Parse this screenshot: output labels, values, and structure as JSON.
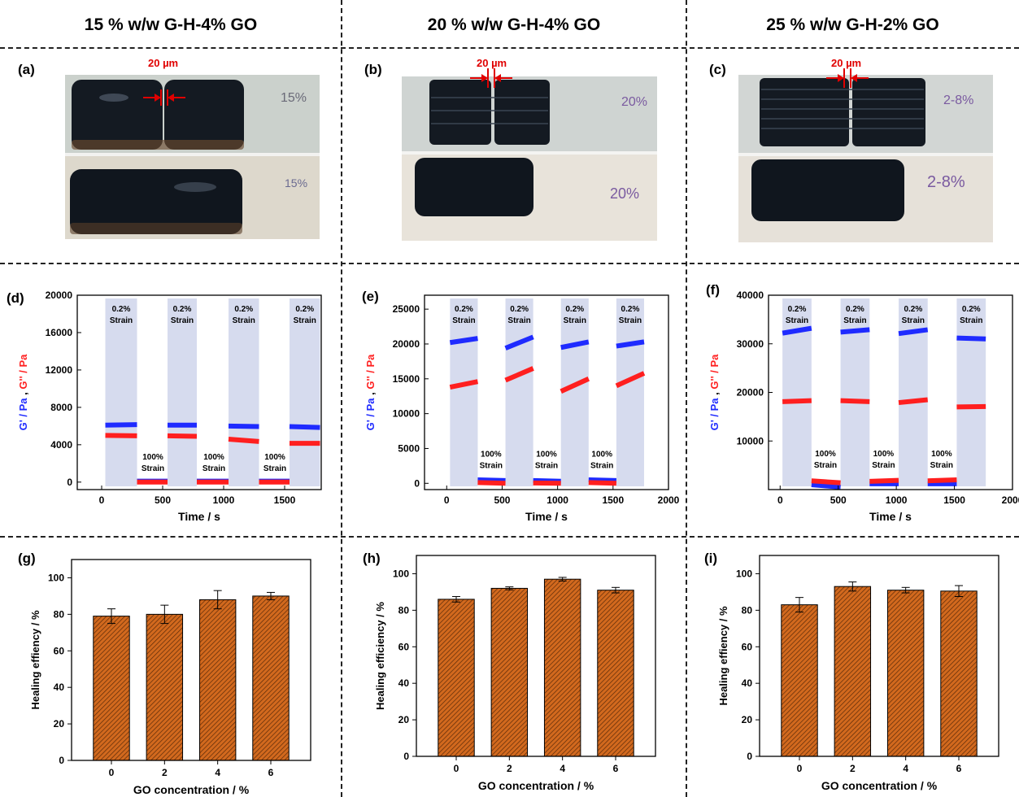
{
  "columns": [
    {
      "title": "15 % w/w G-H-4% GO"
    },
    {
      "title": "20 % w/w G-H-4% GO"
    },
    {
      "title": "25 % w/w G-H-2% GO"
    }
  ],
  "photos": [
    {
      "label": "(a)",
      "scale_text": "20 µm",
      "note_top": "15%",
      "note_bottom": "15%"
    },
    {
      "label": "(b)",
      "scale_text": "20 µm",
      "note_top": "20%",
      "note_bottom": "20%"
    },
    {
      "label": "(c)",
      "scale_text": "20 µm",
      "note_top": "2-8%",
      "note_bottom": "2-8%"
    }
  ],
  "colors": {
    "gprime": "#1f2bff",
    "gdouble": "#ff1f1f",
    "band": "#d6dbee",
    "bar": "#d2691e"
  },
  "chart_data": [
    {
      "type": "scatter",
      "label": "(d)",
      "xlabel": "Time / s",
      "ylabel_a": "G' / Pa",
      "ylabel_sep": " , ",
      "ylabel_b": "G'' / Pa",
      "xlim": [
        -200,
        1800
      ],
      "ylim": [
        -800,
        20000
      ],
      "xticks": [
        "0",
        "500",
        "1000",
        "1500"
      ],
      "xtick_values": [
        0,
        500,
        1000,
        1500
      ],
      "yticks": [
        "0",
        "4000",
        "8000",
        "12000",
        "16000",
        "20000"
      ],
      "ytick_values": [
        0,
        4000,
        8000,
        12000,
        16000,
        20000
      ],
      "bands": [
        [
          30,
          290
        ],
        [
          540,
          780
        ],
        [
          1040,
          1290
        ],
        [
          1540,
          1790
        ]
      ],
      "band_text": [
        "0.2%",
        "Strain"
      ],
      "low_text": [
        "100%",
        "Strain"
      ],
      "low_label_x": [
        420,
        920,
        1420
      ],
      "low_label_y": 1200,
      "series": [
        {
          "name": "G'",
          "segments": [
            [
              30,
              290,
              6100,
              6150
            ],
            [
              540,
              780,
              6100,
              6100
            ],
            [
              1040,
              1290,
              6000,
              5950
            ],
            [
              1540,
              1790,
              5950,
              5850
            ],
            [
              290,
              540,
              100,
              100
            ],
            [
              780,
              1040,
              100,
              100
            ],
            [
              1290,
              1540,
              100,
              100
            ]
          ]
        },
        {
          "name": "G''",
          "segments": [
            [
              30,
              290,
              5000,
              4950
            ],
            [
              540,
              780,
              4950,
              4900
            ],
            [
              1040,
              1290,
              4600,
              4350
            ],
            [
              1540,
              1790,
              4150,
              4150
            ],
            [
              290,
              540,
              0,
              0
            ],
            [
              780,
              1040,
              0,
              0
            ],
            [
              1290,
              1540,
              0,
              0
            ]
          ]
        }
      ]
    },
    {
      "type": "scatter",
      "label": "(e)",
      "xlabel": "Time / s",
      "ylabel_a": "G' / Pa",
      "ylabel_sep": " , ",
      "ylabel_b": "G'' / Pa",
      "xlim": [
        -200,
        2000
      ],
      "ylim": [
        -900,
        27000
      ],
      "xticks": [
        "0",
        "500",
        "1000",
        "1500",
        "2000"
      ],
      "xtick_values": [
        0,
        500,
        1000,
        1500,
        2000
      ],
      "yticks": [
        "0",
        "5000",
        "10000",
        "15000",
        "20000",
        "25000"
      ],
      "ytick_values": [
        0,
        5000,
        10000,
        15000,
        20000,
        25000
      ],
      "bands": [
        [
          30,
          280
        ],
        [
          530,
          780
        ],
        [
          1030,
          1280
        ],
        [
          1530,
          1780
        ]
      ],
      "band_text": [
        "0.2%",
        "Strain"
      ],
      "low_text": [
        "100%",
        "Strain"
      ],
      "low_label_x": [
        400,
        900,
        1400
      ],
      "low_label_y": 2200,
      "series": [
        {
          "name": "G'",
          "segments": [
            [
              30,
              280,
              20200,
              20800
            ],
            [
              530,
              780,
              19400,
              21000
            ],
            [
              1030,
              1280,
              19500,
              20300
            ],
            [
              1530,
              1780,
              19700,
              20300
            ],
            [
              280,
              530,
              500,
              400
            ],
            [
              780,
              1030,
              400,
              300
            ],
            [
              1280,
              1530,
              500,
              400
            ]
          ]
        },
        {
          "name": "G''",
          "segments": [
            [
              30,
              280,
              13800,
              14600
            ],
            [
              530,
              780,
              14800,
              16500
            ],
            [
              1030,
              1280,
              13200,
              15000
            ],
            [
              1530,
              1780,
              14000,
              15800
            ],
            [
              280,
              530,
              100,
              0
            ],
            [
              780,
              1030,
              50,
              0
            ],
            [
              1280,
              1530,
              100,
              0
            ]
          ]
        }
      ]
    },
    {
      "type": "scatter",
      "label": "(f)",
      "xlabel": "Time / s",
      "ylabel_a": "G' / Pa",
      "ylabel_sep": " , ",
      "ylabel_b": "G'' / Pa",
      "xlim": [
        -100,
        2000
      ],
      "ylim": [
        0,
        40000
      ],
      "xticks": [
        "0",
        "500",
        "1000",
        "1500",
        "2000"
      ],
      "xtick_values": [
        0,
        500,
        1000,
        1500,
        2000
      ],
      "yticks": [
        "10000",
        "20000",
        "30000",
        "40000"
      ],
      "ytick_values": [
        10000,
        20000,
        30000,
        40000
      ],
      "bands": [
        [
          20,
          270
        ],
        [
          520,
          770
        ],
        [
          1020,
          1270
        ],
        [
          1520,
          1770
        ]
      ],
      "band_text": [
        "0.2%",
        "Strain"
      ],
      "low_text": [
        "100%",
        "Strain"
      ],
      "low_label_x": [
        390,
        890,
        1390
      ],
      "low_label_y": 4500,
      "series": [
        {
          "name": "G'",
          "segments": [
            [
              20,
              270,
              32200,
              33200
            ],
            [
              520,
              770,
              32400,
              32900
            ],
            [
              1020,
              1270,
              32100,
              32900
            ],
            [
              1520,
              1770,
              31200,
              31000
            ],
            [
              270,
              520,
              1000,
              500
            ],
            [
              770,
              1020,
              1200,
              1200
            ],
            [
              1270,
              1520,
              1200,
              1200
            ]
          ]
        },
        {
          "name": "G''",
          "segments": [
            [
              20,
              270,
              18100,
              18300
            ],
            [
              520,
              770,
              18300,
              18100
            ],
            [
              1020,
              1270,
              17900,
              18500
            ],
            [
              1520,
              1770,
              17000,
              17100
            ],
            [
              270,
              520,
              1800,
              1400
            ],
            [
              770,
              1020,
              1700,
              1900
            ],
            [
              1270,
              1520,
              1800,
              2000
            ]
          ]
        }
      ]
    },
    {
      "type": "bar",
      "label": "(g)",
      "xlabel": "GO concentration / %",
      "ylabel": "Healing effiency / %",
      "categories": [
        "0",
        "2",
        "4",
        "6"
      ],
      "values": [
        79,
        80,
        88,
        90
      ],
      "errors": [
        4,
        5,
        5,
        2
      ],
      "ylim": [
        0,
        110
      ],
      "yticks": [
        "0",
        "20",
        "40",
        "60",
        "80",
        "100"
      ],
      "ytick_values": [
        0,
        20,
        40,
        60,
        80,
        100
      ]
    },
    {
      "type": "bar",
      "label": "(h)",
      "xlabel": "GO concentration / %",
      "ylabel": "Healing efficiency / %",
      "categories": [
        "0",
        "2",
        "4",
        "6"
      ],
      "values": [
        86,
        92,
        97,
        91
      ],
      "errors": [
        1.5,
        0.8,
        1,
        1.5
      ],
      "ylim": [
        0,
        110
      ],
      "yticks": [
        "0",
        "20",
        "40",
        "60",
        "80",
        "100"
      ],
      "ytick_values": [
        0,
        20,
        40,
        60,
        80,
        100
      ]
    },
    {
      "type": "bar",
      "label": "(i)",
      "xlabel": "GO concentration / %",
      "ylabel": "Healing effiency / %",
      "categories": [
        "0",
        "2",
        "4",
        "6"
      ],
      "values": [
        83,
        93,
        91,
        90.5
      ],
      "errors": [
        4,
        2.5,
        1.5,
        3
      ],
      "ylim": [
        0,
        110
      ],
      "yticks": [
        "0",
        "20",
        "40",
        "60",
        "80",
        "100"
      ],
      "ytick_values": [
        0,
        20,
        40,
        60,
        80,
        100
      ]
    }
  ]
}
